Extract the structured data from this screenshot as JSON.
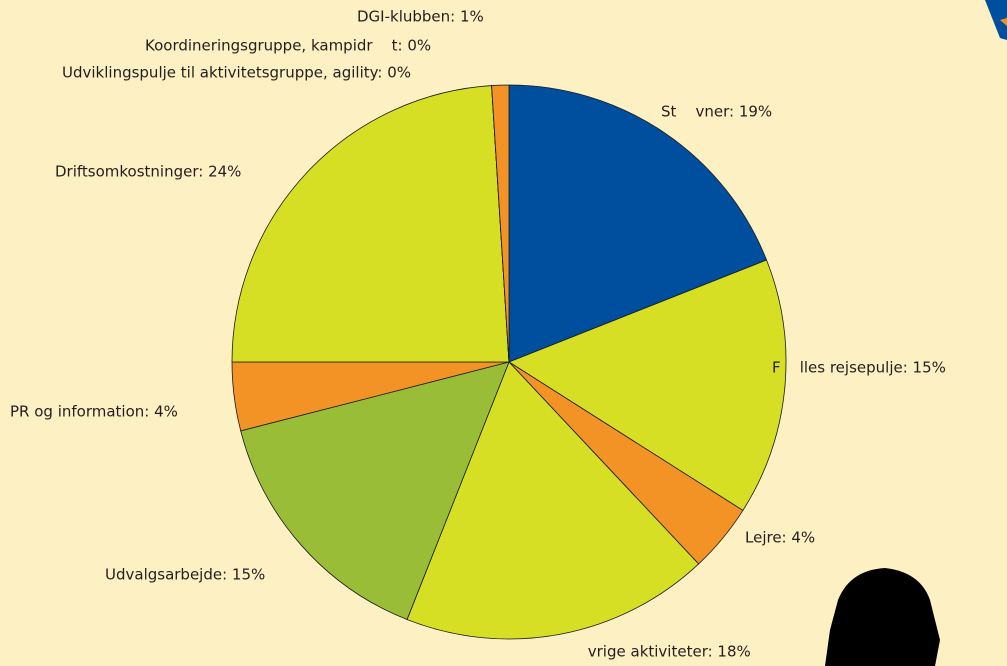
{
  "chart_data": {
    "type": "pie",
    "labels": [
      "St    vner: 19%",
      "F    lles rejsepulje: 15%",
      "Lejre: 4%",
      " vrige aktiviteter: 18%",
      "Udvalgsarbejde: 15%",
      "PR og information: 4%",
      "Driftsomkostninger: 24%",
      "Udviklingspulje til aktivitetsgruppe, agility: 0%",
      "Koordineringsgruppe, kampidr    t: 0%",
      "DGI-klubben: 1%"
    ],
    "values": [
      19,
      15,
      4,
      18,
      15,
      4,
      24,
      0,
      0,
      1
    ],
    "colors": [
      "#004f9f",
      "#d6df23",
      "#f39325",
      "#d6df23",
      "#9abd38",
      "#f39325",
      "#d6df23",
      "#004f9f",
      "#1d3f8f",
      "#f39325"
    ]
  }
}
